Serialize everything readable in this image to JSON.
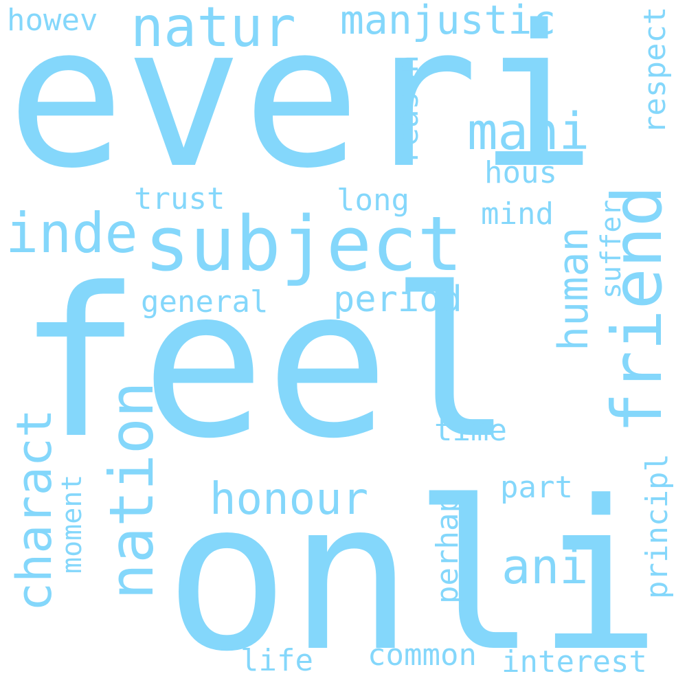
{
  "background": "#ffffff",
  "word_color": "#84d7fb",
  "words": [
    {
      "text": "everi",
      "weight": 1.0,
      "vertical": false
    },
    {
      "text": "feel",
      "weight": 1.0,
      "vertical": false
    },
    {
      "text": "onli",
      "weight": 1.0,
      "vertical": false
    },
    {
      "text": "subject",
      "weight": 0.45,
      "vertical": false
    },
    {
      "text": "friend",
      "weight": 0.42,
      "vertical": true
    },
    {
      "text": "nation",
      "weight": 0.4,
      "vertical": true
    },
    {
      "text": "human",
      "weight": 0.3,
      "vertical": true
    },
    {
      "text": "mani",
      "weight": 0.3,
      "vertical": false
    },
    {
      "text": "natur",
      "weight": 0.3,
      "vertical": false
    },
    {
      "text": "inde",
      "weight": 0.3,
      "vertical": false
    },
    {
      "text": "charact",
      "weight": 0.3,
      "vertical": true
    },
    {
      "text": "honour",
      "weight": 0.28,
      "vertical": false
    },
    {
      "text": "ani",
      "weight": 0.28,
      "vertical": false
    },
    {
      "text": "manjustic",
      "weight": 0.22,
      "vertical": false
    },
    {
      "text": "period",
      "weight": 0.22,
      "vertical": false
    },
    {
      "text": "howev",
      "weight": 0.17,
      "vertical": false
    },
    {
      "text": "reason",
      "weight": 0.17,
      "vertical": true
    },
    {
      "text": "respect",
      "weight": 0.17,
      "vertical": true
    },
    {
      "text": "hous",
      "weight": 0.17,
      "vertical": false
    },
    {
      "text": "trust",
      "weight": 0.17,
      "vertical": false
    },
    {
      "text": "long",
      "weight": 0.17,
      "vertical": false
    },
    {
      "text": "mind",
      "weight": 0.17,
      "vertical": false
    },
    {
      "text": "general",
      "weight": 0.17,
      "vertical": false
    },
    {
      "text": "suffer",
      "weight": 0.17,
      "vertical": true
    },
    {
      "text": "time",
      "weight": 0.17,
      "vertical": false
    },
    {
      "text": "part",
      "weight": 0.17,
      "vertical": false
    },
    {
      "text": "moment",
      "weight": 0.17,
      "vertical": true
    },
    {
      "text": "perhap",
      "weight": 0.17,
      "vertical": true
    },
    {
      "text": "principl",
      "weight": 0.17,
      "vertical": true
    },
    {
      "text": "life",
      "weight": 0.17,
      "vertical": false
    },
    {
      "text": "common",
      "weight": 0.17,
      "vertical": false
    },
    {
      "text": "interest",
      "weight": 0.17,
      "vertical": false
    }
  ]
}
